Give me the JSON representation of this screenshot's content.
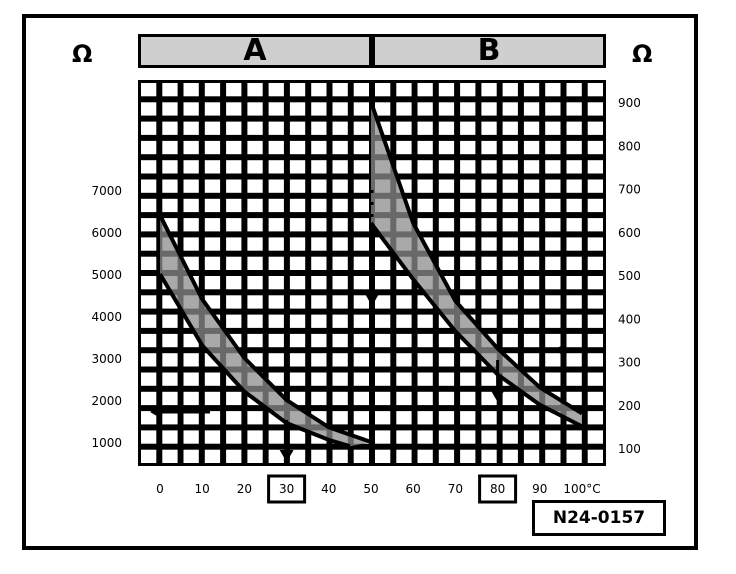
{
  "labels": {
    "left_unit": "Ω",
    "right_unit": "Ω",
    "range_a": "A",
    "range_b": "B",
    "figure_id": "N24-0157"
  },
  "chart_data": {
    "type": "line",
    "xlabel": "",
    "x_ticks": [
      "0",
      "10",
      "20",
      "30",
      "40",
      "50",
      "60",
      "70",
      "80",
      "90",
      "100°C"
    ],
    "xlim": [
      0,
      100
    ],
    "left_axis": {
      "ticks": [
        "1000",
        "2000",
        "3000",
        "4000",
        "5000",
        "6000",
        "7000"
      ],
      "ylim": [
        1000,
        7000
      ]
    },
    "right_axis": {
      "ticks": [
        "100",
        "200",
        "300",
        "400",
        "500",
        "600",
        "700",
        "800",
        "900"
      ],
      "ylim": [
        100,
        900
      ]
    },
    "highlighted_x": [
      "30",
      "80"
    ],
    "grid": true,
    "series": [
      {
        "axis": "left",
        "upper": [
          [
            0,
            6400
          ],
          [
            10,
            4400
          ],
          [
            20,
            3000
          ],
          [
            30,
            2000
          ],
          [
            40,
            1350
          ],
          [
            50,
            1000
          ]
        ],
        "lower": [
          [
            0,
            5000
          ],
          [
            10,
            3300
          ],
          [
            20,
            2200
          ],
          [
            30,
            1450
          ],
          [
            40,
            1050
          ],
          [
            45,
            900
          ]
        ]
      },
      {
        "axis": "right",
        "upper": [
          [
            50,
            900
          ],
          [
            60,
            620
          ],
          [
            70,
            440
          ],
          [
            80,
            330
          ],
          [
            90,
            240
          ],
          [
            100,
            180
          ]
        ],
        "lower": [
          [
            50,
            620
          ],
          [
            60,
            490
          ],
          [
            70,
            370
          ],
          [
            80,
            270
          ],
          [
            90,
            200
          ],
          [
            100,
            150
          ]
        ]
      }
    ]
  }
}
